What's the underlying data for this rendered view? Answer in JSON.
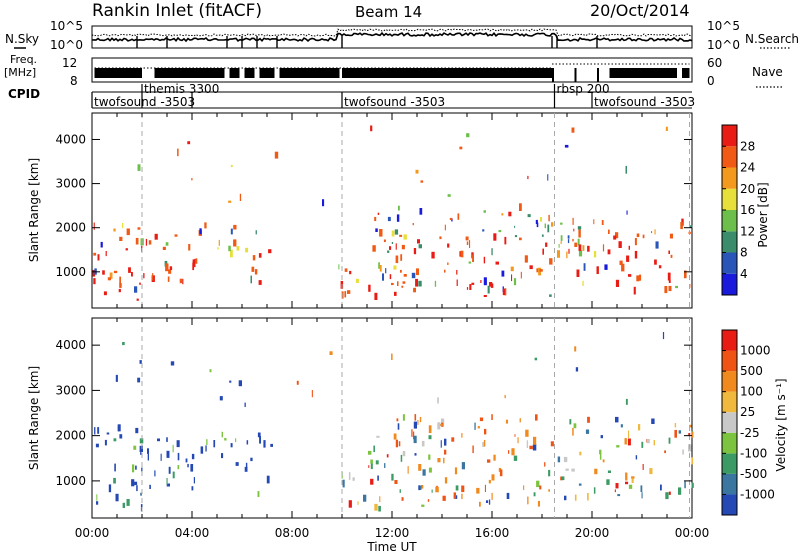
{
  "header": {
    "title": "Rankin Inlet (fitACF)",
    "beam": "Beam 14",
    "date": "20/Oct/2014"
  },
  "top_panels": {
    "nsky_label": "N.Sky",
    "nsky_ticks": [
      "10^5",
      "10^0"
    ],
    "nsearch_label": "N.Search",
    "nsearch_ticks": [
      "10^5",
      "10^0"
    ],
    "freq_label_1": "Freq.",
    "freq_label_2": "[MHz]",
    "freq_ticks": [
      "12",
      "8"
    ],
    "nave_label": "Nave",
    "nave_ticks": [
      "60",
      "0"
    ],
    "cpid_label": "CPID"
  },
  "cpid_segments": [
    {
      "start": 0.0,
      "end": 2.0,
      "label": "twofsound -3503",
      "row": 1
    },
    {
      "start": 2.0,
      "end": 4.0,
      "label": "themis 3300",
      "row": 0
    },
    {
      "start": 4.0,
      "end": 10.0,
      "label": "",
      "row": 1
    },
    {
      "start": 10.0,
      "end": 18.5,
      "label": "twofsound -3503",
      "row": 1
    },
    {
      "start": 18.5,
      "end": 20.0,
      "label": "rbsp 200",
      "row": 0
    },
    {
      "start": 20.0,
      "end": 23.9,
      "label": "twofsound -3503",
      "row": 1
    }
  ],
  "chart_data": [
    {
      "type": "heatmap",
      "name": "power",
      "ylabel": "Slant Range [km]",
      "yticks": [
        1000,
        2000,
        3000,
        4000
      ],
      "ylim": [
        180,
        4600
      ],
      "xlim": [
        0,
        24
      ],
      "colorbar_label": "Power [dB]",
      "colorbar_ticks": [
        "4",
        "8",
        "12",
        "16",
        "20",
        "24",
        "28"
      ],
      "colorbar_colors": [
        "#1a1adc",
        "#2a55b8",
        "#3a8c6a",
        "#6cbf4a",
        "#e8e03a",
        "#f39a1e",
        "#f05a14",
        "#e81c14"
      ],
      "dashed_time_markers": [
        2.0,
        10.0,
        18.5,
        23.9
      ]
    },
    {
      "type": "heatmap",
      "name": "velocity",
      "ylabel": "Slant Range [km]",
      "yticks": [
        1000,
        2000,
        3000,
        4000
      ],
      "ylim": [
        180,
        4600
      ],
      "xlim": [
        0,
        24
      ],
      "colorbar_label": "Velocity [m s⁻¹]",
      "colorbar_ticks": [
        "1000",
        "500",
        "100",
        "25",
        "-25",
        "-100",
        "-500",
        "-1000"
      ],
      "colorbar_colors": [
        "#2448b4",
        "#3a76a0",
        "#3c9a64",
        "#7cc440",
        "#c8c8c8",
        "#f0b83c",
        "#f08a1e",
        "#f05414",
        "#e81c14"
      ],
      "dashed_time_markers": [
        2.0,
        10.0,
        18.5,
        23.9
      ]
    }
  ],
  "x_axis": {
    "label": "Time UT",
    "ticks": [
      "00:00",
      "04:00",
      "08:00",
      "12:00",
      "16:00",
      "20:00",
      "00:00"
    ]
  }
}
